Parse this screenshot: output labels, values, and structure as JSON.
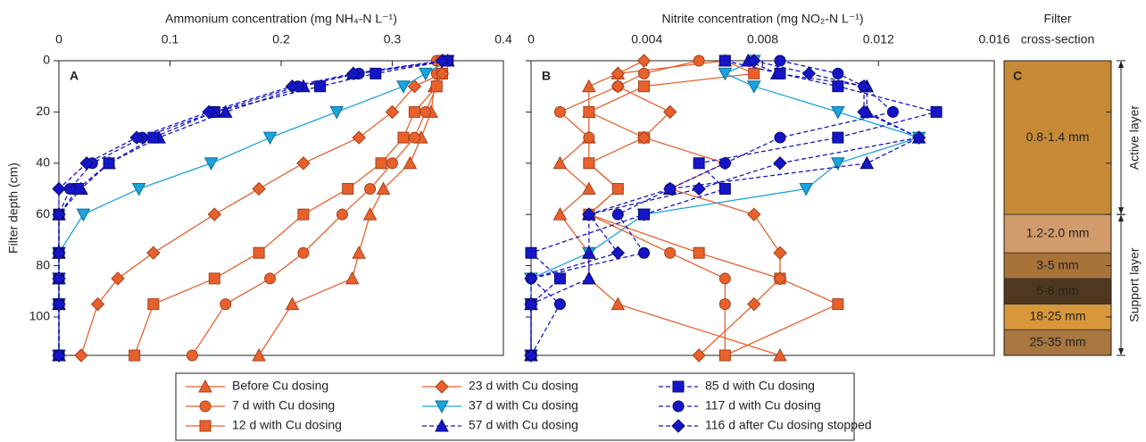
{
  "chart_data": [
    {
      "type": "profile",
      "label": "A",
      "xlabel": "Ammonium concentration (mg NH₄-N L⁻¹)",
      "ylabel": "Filter depth (cm)",
      "xlim": [
        0,
        0.4
      ],
      "xticks": [
        0,
        0.1,
        0.2,
        0.3,
        0.4
      ],
      "ylim": [
        0,
        115
      ],
      "yticks": [
        0,
        20,
        40,
        60,
        80,
        100
      ],
      "depths": [
        0,
        5,
        10,
        20,
        30,
        40,
        50,
        60,
        75,
        85,
        95,
        115
      ],
      "series": [
        {
          "name": "Before Cu dosing",
          "color": "#e8612c",
          "marker": "triangle",
          "dash": false,
          "values": [
            0.345,
            0.344,
            0.338,
            0.335,
            0.326,
            0.316,
            0.292,
            0.28,
            0.27,
            0.264,
            0.21,
            0.18
          ]
        },
        {
          "name": "7 d with Cu dosing",
          "color": "#e8612c",
          "marker": "circle",
          "dash": false,
          "values": [
            0.34,
            0.34,
            0.34,
            0.33,
            0.32,
            0.3,
            0.28,
            0.255,
            0.22,
            0.19,
            0.15,
            0.12
          ]
        },
        {
          "name": "12 d with Cu dosing",
          "color": "#e8612c",
          "marker": "square",
          "dash": false,
          "values": [
            0.345,
            0.345,
            0.34,
            0.32,
            0.31,
            0.29,
            0.26,
            0.22,
            0.18,
            0.14,
            0.085,
            0.068
          ]
        },
        {
          "name": "23 d with Cu dosing",
          "color": "#e8612c",
          "marker": "diamond",
          "dash": false,
          "values": [
            0.345,
            0.345,
            0.32,
            0.3,
            0.27,
            0.22,
            0.18,
            0.14,
            0.085,
            0.053,
            0.035,
            0.02
          ]
        },
        {
          "name": "37 d with Cu dosing",
          "color": "#1ba3dc",
          "marker": "down-triangle",
          "dash": false,
          "values": [
            0.35,
            0.33,
            0.31,
            0.25,
            0.19,
            0.137,
            0.072,
            0.022,
            0,
            0,
            0,
            0
          ]
        },
        {
          "name": "57 d with Cu dosing",
          "color": "#1515c8",
          "marker": "triangle",
          "dash": true,
          "values": [
            0.35,
            0.265,
            0.22,
            0.15,
            0.09,
            0.045,
            0.02,
            0,
            0,
            0,
            0,
            0
          ]
        },
        {
          "name": "85 d with Cu dosing",
          "color": "#1515c8",
          "marker": "square",
          "dash": true,
          "values": [
            0.35,
            0.285,
            0.235,
            0.14,
            0.085,
            0.045,
            0.017,
            0,
            0,
            0,
            0,
            0
          ]
        },
        {
          "name": "117 d with Cu dosing",
          "color": "#1515c8",
          "marker": "circle",
          "dash": true,
          "values": [
            0.35,
            0.27,
            0.215,
            0.14,
            0.075,
            0.03,
            0.01,
            0,
            0,
            0,
            0,
            0
          ]
        },
        {
          "name": "116 d after Cu dosing stopped",
          "color": "#1515c8",
          "marker": "diamond",
          "dash": true,
          "values": [
            0.345,
            0.265,
            0.21,
            0.135,
            0.07,
            0.025,
            0,
            0,
            0,
            0,
            0,
            0
          ]
        }
      ]
    },
    {
      "type": "profile",
      "label": "B",
      "xlabel": "Nitrite concentration (mg NO₂-N L⁻¹)",
      "xlim": [
        0,
        0.016
      ],
      "xticks": [
        0,
        0.004,
        0.008,
        0.012,
        0.016
      ],
      "ylim": [
        0,
        115
      ],
      "yticks": [
        0,
        20,
        40,
        60,
        80,
        100
      ],
      "depths": [
        0,
        5,
        10,
        20,
        30,
        40,
        50,
        60,
        75,
        85,
        95,
        115
      ],
      "series": [
        {
          "color": "#e8612c",
          "marker": "triangle",
          "dash": false,
          "values": [
            0.0067,
            0.003,
            0.002,
            0.002,
            0.002,
            0.001,
            0.002,
            0.001,
            0.002,
            0.002,
            0.003,
            0.0086
          ]
        },
        {
          "color": "#e8612c",
          "marker": "circle",
          "dash": false,
          "values": [
            0.0058,
            0.0039,
            0.003,
            0.001,
            0.002,
            0.002,
            0.003,
            0.002,
            0.0048,
            0.0067,
            0.0067,
            0.0067
          ]
        },
        {
          "color": "#e8612c",
          "marker": "square",
          "dash": false,
          "values": [
            0.0067,
            0.0077,
            0.0039,
            0.002,
            0.0039,
            0.002,
            0.003,
            0.002,
            0.0058,
            0.0086,
            0.0106,
            0.0067
          ]
        },
        {
          "color": "#e8612c",
          "marker": "diamond",
          "dash": false,
          "values": [
            0.0039,
            0.003,
            0.003,
            0.0048,
            0.0039,
            0.0067,
            0.0048,
            0.0077,
            0.0086,
            0.0086,
            0.0077,
            0.0058
          ]
        },
        {
          "color": "#1ba3dc",
          "marker": "down-triangle",
          "dash": false,
          "values": [
            0.0077,
            0.0067,
            0.0077,
            0.0106,
            0.0134,
            0.0106,
            0.0095,
            0.0039,
            0.002,
            0,
            0,
            0
          ]
        },
        {
          "color": "#1515c8",
          "marker": "triangle",
          "dash": true,
          "values": [
            0.0075,
            0.0085,
            0.0116,
            0.0116,
            0.0134,
            0.0116,
            0.0048,
            0.002,
            0.002,
            0.002,
            0,
            0
          ]
        },
        {
          "color": "#1515c8",
          "marker": "square",
          "dash": true,
          "values": [
            0.0067,
            0.0086,
            0.0106,
            0.014,
            0.0106,
            0.0058,
            0.0067,
            0.0039,
            0,
            0.001,
            0,
            0
          ]
        },
        {
          "color": "#1515c8",
          "marker": "circle",
          "dash": true,
          "values": [
            0.0086,
            0.0106,
            0.0115,
            0.0125,
            0.0086,
            0.0067,
            0.0048,
            0.003,
            0.0039,
            0,
            0.001,
            0
          ]
        },
        {
          "color": "#1515c8",
          "marker": "diamond",
          "dash": true,
          "values": [
            0.0077,
            0.0096,
            0.0115,
            0.0115,
            0.0134,
            0.0086,
            0.0058,
            0.002,
            0.003,
            0,
            0,
            0
          ]
        }
      ]
    },
    {
      "type": "layers",
      "label": "C",
      "title": [
        "Filter",
        "cross-section"
      ],
      "ylim": [
        0,
        115
      ],
      "yticks": [
        0,
        20,
        40,
        60,
        80,
        100
      ],
      "layers": [
        {
          "label": "0.8-1.4 mm",
          "top": 0,
          "bottom": 60,
          "color": "#c68a36",
          "text": "#222"
        },
        {
          "label": "1.2-2.0 mm",
          "top": 60,
          "bottom": 75,
          "color": "#d29b6c",
          "text": "#222"
        },
        {
          "label": "3-5 mm",
          "top": 75,
          "bottom": 85,
          "color": "#a77339",
          "text": "#222"
        },
        {
          "label": "5-8 mm",
          "top": 85,
          "bottom": 95,
          "color": "#4f3820",
          "text": "#fff"
        },
        {
          "label": "18-25 mm",
          "top": 95,
          "bottom": 105,
          "color": "#d8973a",
          "text": "#222"
        },
        {
          "label": "25-35 mm",
          "top": 105,
          "bottom": 115,
          "color": "#a8763f",
          "text": "#222"
        }
      ],
      "brackets": [
        {
          "label": "Active layer",
          "top": 0,
          "bottom": 60
        },
        {
          "label": "Support layer",
          "top": 60,
          "bottom": 115
        }
      ]
    }
  ]
}
